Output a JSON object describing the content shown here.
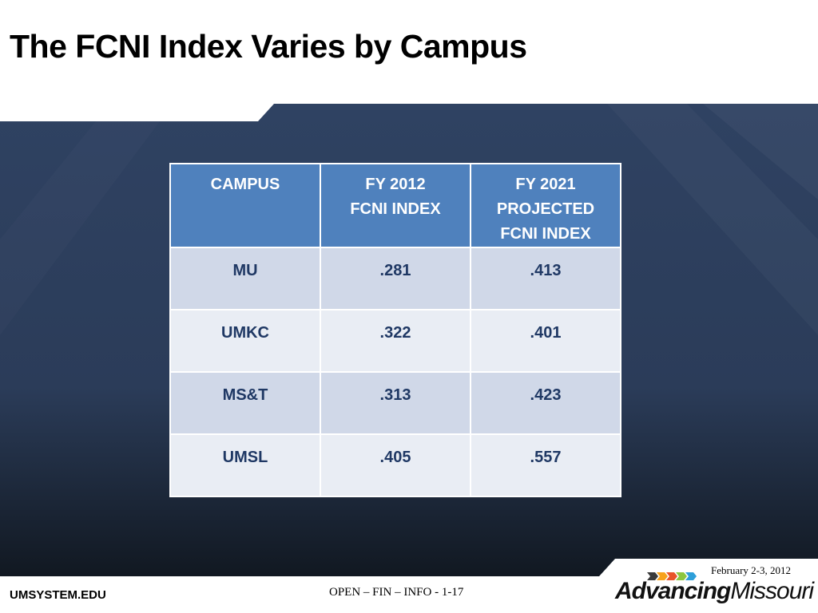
{
  "slide": {
    "title": "The FCNI Index Varies by Campus"
  },
  "table": {
    "headers": [
      [
        "CAMPUS"
      ],
      [
        "FY 2012",
        "FCNI INDEX"
      ],
      [
        "FY 2021",
        "PROJECTED",
        "FCNI INDEX"
      ]
    ],
    "rows": [
      [
        "MU",
        ".281",
        ".413"
      ],
      [
        "UMKC",
        ".322",
        ".401"
      ],
      [
        "MS&T",
        ".313",
        ".423"
      ],
      [
        "UMSL",
        ".405",
        ".557"
      ]
    ]
  },
  "footer": {
    "website": "UMSYSTEM.EDU",
    "slide_code": "OPEN – FIN – INFO - 1-17",
    "date": "February 2-3, 2012",
    "logo_bold": "Advancing",
    "logo_light": "Missouri"
  },
  "colors": {
    "header_fill": "#4f81bd",
    "row_odd": "#d0d8e8",
    "row_even": "#e9edf4",
    "background_dark": "#2a3b57",
    "logo_arrows": [
      "#3a3a3a",
      "#f7a21b",
      "#e8542a",
      "#8cc63f",
      "#2e9fd9"
    ]
  }
}
